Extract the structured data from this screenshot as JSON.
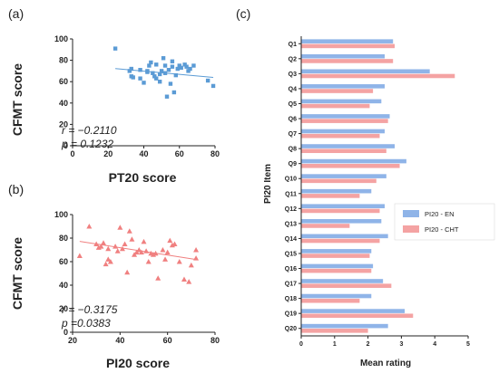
{
  "chart_data": [
    {
      "panel": "(a)",
      "type": "scatter",
      "xlabel": "PT20 score",
      "ylabel": "CFMT score",
      "xlim": [
        0,
        80
      ],
      "ylim": [
        0,
        100
      ],
      "xticks": [
        "0",
        "20",
        "40",
        "60",
        "80"
      ],
      "yticks": [
        "0",
        "20",
        "40",
        "60",
        "80",
        "100"
      ],
      "marker": "square",
      "color": "#5b9bd5",
      "fit_line": [
        [
          24,
          72.2
        ],
        [
          79,
          64.0
        ]
      ],
      "stat_r": "r = −0.2110",
      "stat_p": "p = 0.1232",
      "points": [
        [
          24,
          91
        ],
        [
          32,
          70
        ],
        [
          33,
          65
        ],
        [
          33,
          72
        ],
        [
          34,
          64
        ],
        [
          38,
          71
        ],
        [
          38,
          63
        ],
        [
          40,
          59
        ],
        [
          42,
          70
        ],
        [
          42,
          69
        ],
        [
          43,
          75
        ],
        [
          44,
          78
        ],
        [
          45,
          68
        ],
        [
          46,
          65
        ],
        [
          47,
          76
        ],
        [
          47,
          63
        ],
        [
          49,
          60
        ],
        [
          49,
          67
        ],
        [
          50,
          70
        ],
        [
          51,
          82
        ],
        [
          52,
          68
        ],
        [
          52,
          75
        ],
        [
          53,
          46
        ],
        [
          54,
          71
        ],
        [
          55,
          58
        ],
        [
          56,
          74
        ],
        [
          56,
          79
        ],
        [
          57,
          50
        ],
        [
          58,
          66
        ],
        [
          59,
          72
        ],
        [
          60,
          75
        ],
        [
          61,
          73
        ],
        [
          63,
          76
        ],
        [
          64,
          74
        ],
        [
          65,
          70
        ],
        [
          66,
          72
        ],
        [
          68,
          75
        ],
        [
          76,
          61
        ],
        [
          79,
          56
        ]
      ]
    },
    {
      "panel": "(b)",
      "type": "scatter",
      "xlabel": "PI20 score",
      "ylabel": "CFMT score",
      "xlim": [
        20,
        80
      ],
      "ylim": [
        0,
        100
      ],
      "xticks": [
        "20",
        "40",
        "60",
        "80"
      ],
      "yticks": [
        "0",
        "20",
        "40",
        "60",
        "80",
        "100"
      ],
      "marker": "triangle",
      "color": "#f08080",
      "fit_line": [
        [
          23,
          77.2
        ],
        [
          72,
          61.8
        ]
      ],
      "stat_r": "r = −0.3175",
      "stat_p": "p =0.0383",
      "points": [
        [
          23,
          65
        ],
        [
          27,
          90
        ],
        [
          30,
          75
        ],
        [
          31,
          72
        ],
        [
          32,
          73
        ],
        [
          33,
          76
        ],
        [
          34,
          58
        ],
        [
          35,
          62
        ],
        [
          35,
          71
        ],
        [
          36,
          60
        ],
        [
          38,
          73
        ],
        [
          39,
          69
        ],
        [
          40,
          89
        ],
        [
          41,
          71
        ],
        [
          42,
          75
        ],
        [
          43,
          51
        ],
        [
          44,
          86
        ],
        [
          45,
          79
        ],
        [
          46,
          66
        ],
        [
          47,
          68
        ],
        [
          48,
          70
        ],
        [
          49,
          68
        ],
        [
          50,
          77
        ],
        [
          51,
          69
        ],
        [
          52,
          60
        ],
        [
          53,
          67
        ],
        [
          54,
          66
        ],
        [
          55,
          67
        ],
        [
          56,
          46
        ],
        [
          58,
          70
        ],
        [
          59,
          62
        ],
        [
          60,
          68
        ],
        [
          61,
          78
        ],
        [
          62,
          74
        ],
        [
          63,
          75
        ],
        [
          65,
          60
        ],
        [
          67,
          45
        ],
        [
          69,
          43
        ],
        [
          70,
          57
        ],
        [
          72,
          70
        ],
        [
          72,
          63
        ]
      ]
    },
    {
      "panel": "(c)",
      "type": "bar",
      "orientation": "horizontal",
      "xlabel": "Mean rating",
      "ylabel": "PI20 Item",
      "xlim": [
        0,
        5
      ],
      "xticks": [
        "0",
        "1",
        "2",
        "3",
        "4",
        "5"
      ],
      "categories": [
        "Q1",
        "Q2",
        "Q3",
        "Q4",
        "Q5",
        "Q6",
        "Q7",
        "Q8",
        "Q9",
        "Q10",
        "Q11",
        "Q12",
        "Q13",
        "Q14",
        "Q15",
        "Q16",
        "Q17",
        "Q18",
        "Q19",
        "Q20"
      ],
      "legend_position": "right",
      "series": [
        {
          "name": "PI20 - EN",
          "color": "#8fb4e8",
          "values": [
            2.75,
            2.5,
            3.85,
            2.5,
            2.4,
            2.65,
            2.5,
            2.8,
            3.15,
            2.55,
            2.1,
            2.5,
            2.4,
            2.6,
            2.1,
            2.15,
            2.45,
            2.1,
            3.1,
            2.6
          ]
        },
        {
          "name": "PI20 - CHT",
          "color": "#f4a3a3",
          "values": [
            2.8,
            2.75,
            4.6,
            2.15,
            2.05,
            2.6,
            2.35,
            2.55,
            2.95,
            2.25,
            1.75,
            2.35,
            1.45,
            2.35,
            2.05,
            2.1,
            2.7,
            1.75,
            3.35,
            2.0
          ]
        }
      ]
    }
  ]
}
